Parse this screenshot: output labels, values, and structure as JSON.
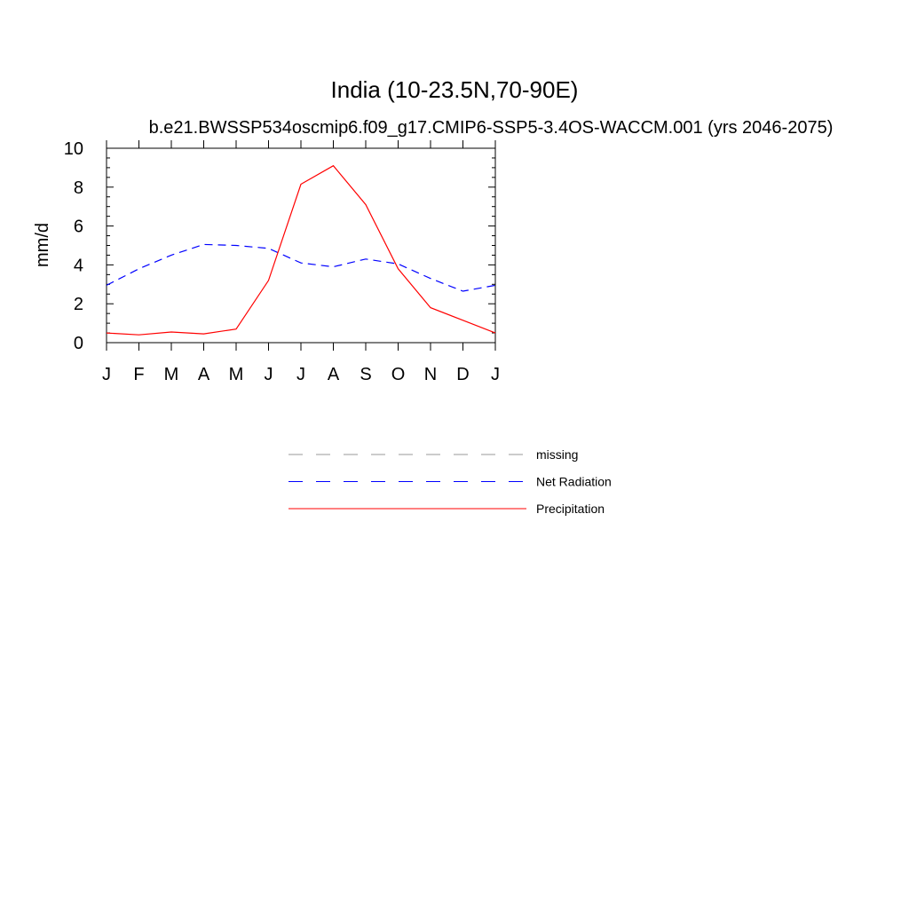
{
  "chart_data": {
    "type": "line",
    "title": "India (10-23.5N,70-90E)",
    "subtitle": "b.e21.BWSSP534oscmip6.f09_g17.CMIP6-SSP5-3.4OS-WACCM.001 (yrs 2046-2075)",
    "ylabel": "mm/d",
    "xlabel": "",
    "categories": [
      "J",
      "F",
      "M",
      "A",
      "M",
      "J",
      "J",
      "A",
      "S",
      "O",
      "N",
      "D",
      "J"
    ],
    "ylim": [
      0,
      10
    ],
    "yticks": [
      "0",
      "2",
      "4",
      "6",
      "8",
      "10"
    ],
    "grid": false,
    "legend_position": "below",
    "series": [
      {
        "name": "Net Radiation",
        "style": "dashed",
        "color": "#0000ff",
        "values": [
          2.95,
          3.8,
          4.5,
          5.05,
          5.0,
          4.85,
          4.1,
          3.9,
          4.3,
          4.05,
          3.3,
          2.65,
          2.95
        ]
      },
      {
        "name": "Precipitation",
        "style": "solid",
        "color": "#ff0000",
        "values": [
          0.5,
          0.4,
          0.55,
          0.45,
          0.7,
          3.2,
          8.15,
          9.1,
          7.1,
          3.8,
          1.8,
          1.15,
          0.5
        ]
      }
    ],
    "legend": [
      {
        "label": "missing",
        "style": "dashed",
        "color": "#999999"
      },
      {
        "label": "Net Radiation",
        "style": "dashed",
        "color": "#0000ff"
      },
      {
        "label": "Precipitation",
        "style": "solid",
        "color": "#ff0000"
      }
    ]
  }
}
